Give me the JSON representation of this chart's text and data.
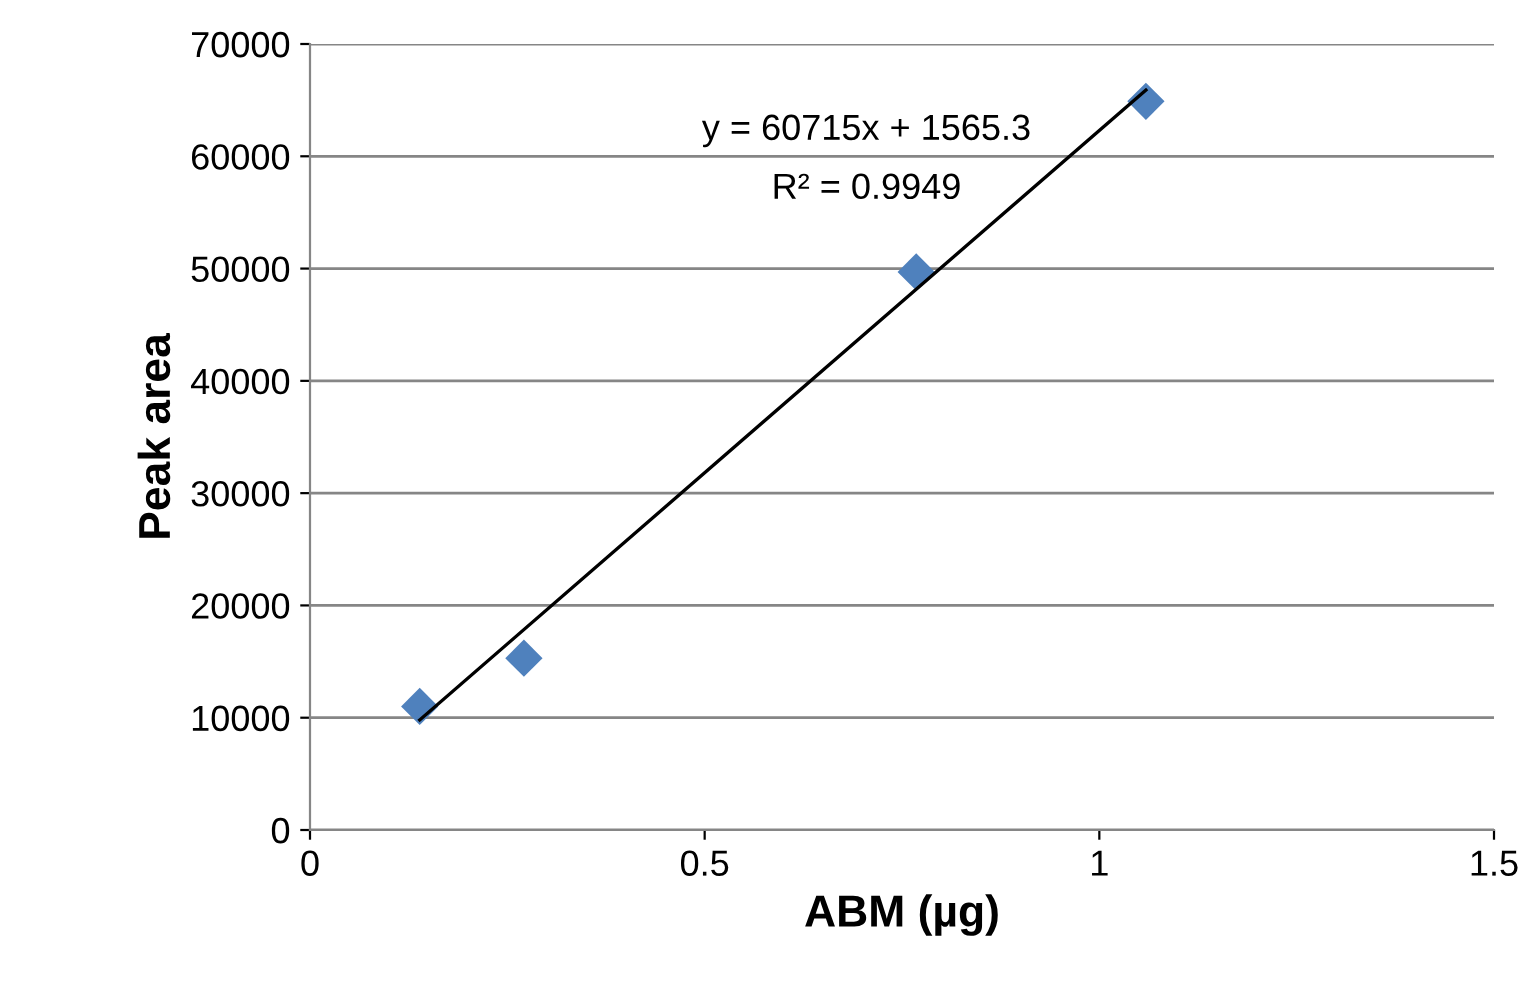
{
  "chart_data": {
    "type": "scatter",
    "xlabel": "ABM (µg)",
    "ylabel": "Peak area",
    "xlim": [
      0,
      1.5
    ],
    "xticks": [
      0,
      0.5,
      1,
      1.5
    ],
    "ylim": [
      0,
      70000
    ],
    "yticks": [
      0,
      10000,
      20000,
      30000,
      40000,
      50000,
      60000,
      70000
    ],
    "grid": "y",
    "legend": false,
    "series": [
      {
        "color": "#4f81bd",
        "marker": "diamond",
        "x": [
          0.139,
          0.271,
          0.768,
          1.059
        ],
        "values": [
          11000,
          15300,
          49700,
          64900
        ]
      },
      {
        "type": "line",
        "color": "#000000",
        "marker": "none",
        "line_style": "solid",
        "x": [
          0.139,
          1.059
        ],
        "values": [
          9800,
          65900
        ]
      }
    ],
    "annotations": [
      "y = 60715x + 1565.3",
      "R² = 0.9949"
    ]
  }
}
